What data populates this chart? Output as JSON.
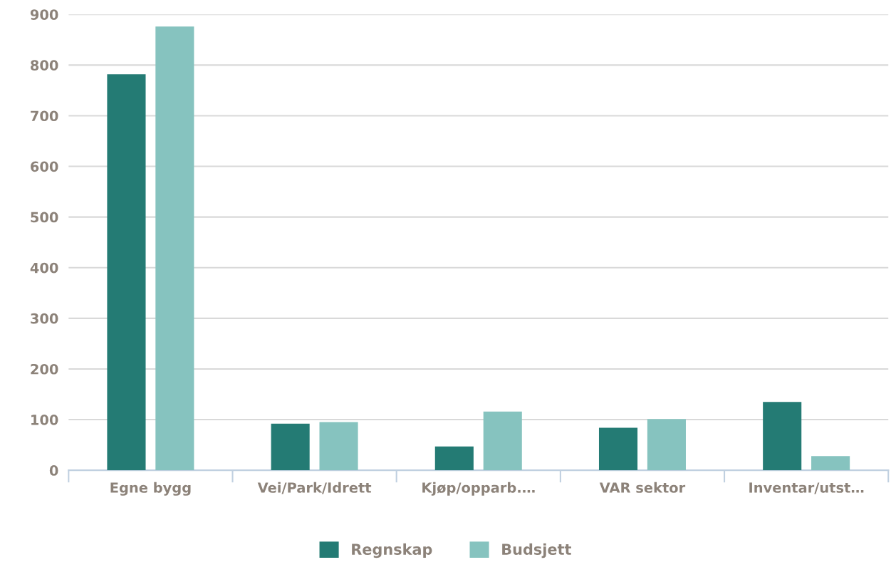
{
  "chart_data": {
    "type": "bar",
    "categories": [
      "Egne bygg",
      "Vei/Park/Idrett",
      "Kjøp/opparb.…",
      "VAR sektor",
      "Inventar/utst…"
    ],
    "series": [
      {
        "name": "Regnskap",
        "color": "#247b74",
        "values": [
          782,
          92,
          47,
          84,
          135
        ]
      },
      {
        "name": "Budsjett",
        "color": "#86c3bf",
        "values": [
          876,
          95,
          116,
          101,
          28
        ]
      }
    ],
    "ylim": [
      0,
      900
    ],
    "yticks": [
      0,
      100,
      200,
      300,
      400,
      500,
      600,
      700,
      800,
      900
    ],
    "grid": "y",
    "legend": "bottom"
  }
}
